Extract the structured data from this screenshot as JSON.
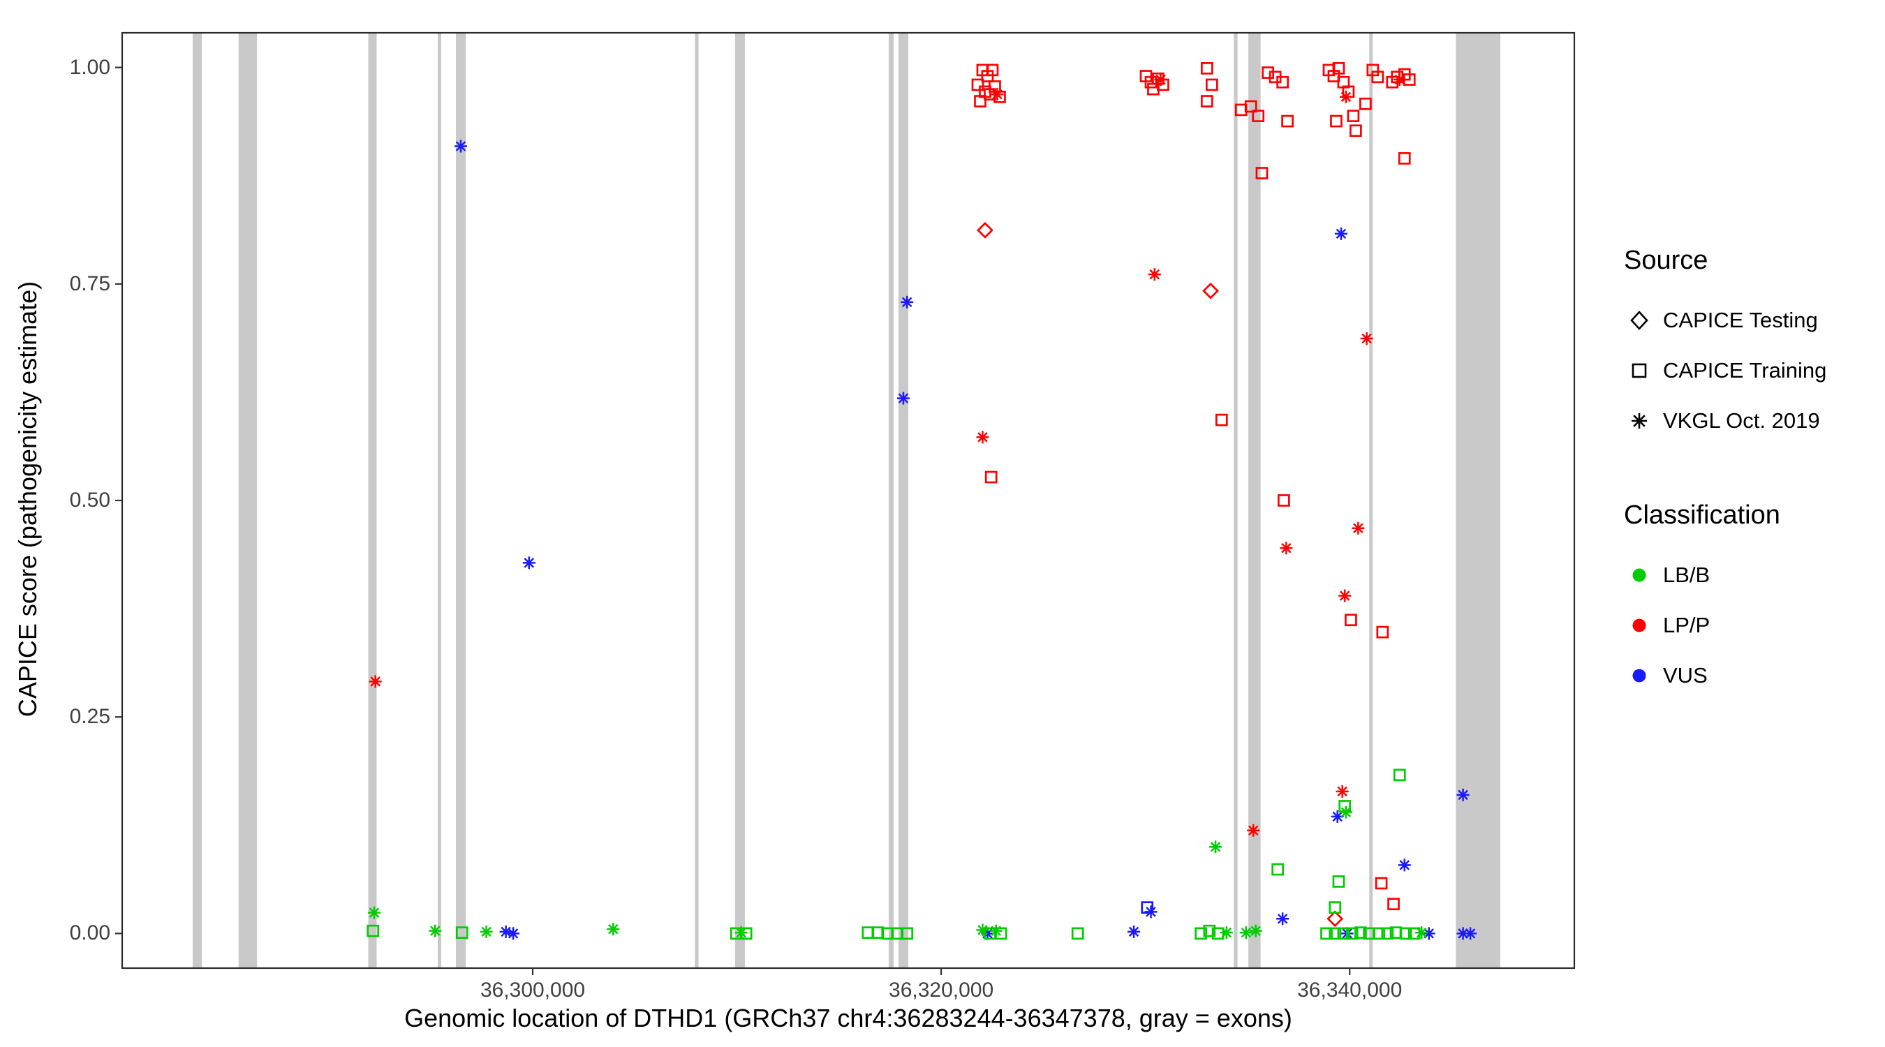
{
  "figure": {
    "background": "#ffffff"
  },
  "legend": {
    "source": {
      "title": "Source",
      "items": [
        {
          "label": "CAPICE Testing",
          "shape": "diamond"
        },
        {
          "label": "CAPICE Training",
          "shape": "square"
        },
        {
          "label": "VKGL Oct. 2019",
          "shape": "asterisk"
        }
      ]
    },
    "classification": {
      "title": "Classification",
      "items": [
        {
          "label": "LB/B",
          "color": "#00cc00"
        },
        {
          "label": "LP/P",
          "color": "#ff0000"
        },
        {
          "label": "VUS",
          "color": "#1a1aff"
        }
      ]
    }
  },
  "chart_data": {
    "type": "scatter",
    "title": "",
    "xlabel": "Genomic location of DTHD1 (GRCh37 chr4:36283244-36347378, gray = exons)",
    "ylabel": "CAPICE score (pathogenicity estimate)",
    "xlim": [
      36279900,
      36351000
    ],
    "ylim": [
      -0.04,
      1.04
    ],
    "grid": "none",
    "legend_position": "right",
    "x_ticks": [
      {
        "value": 36300000,
        "label": "36,300,000"
      },
      {
        "value": 36320000,
        "label": "36,320,000"
      },
      {
        "value": 36340000,
        "label": "36,340,000"
      }
    ],
    "y_ticks": [
      {
        "value": 1.0,
        "label": "1.00"
      },
      {
        "value": 0.75,
        "label": "0.75"
      },
      {
        "value": 0.5,
        "label": "0.50"
      },
      {
        "value": 0.25,
        "label": "0.25"
      },
      {
        "value": 0.0,
        "label": "0.00"
      }
    ],
    "exon_color": "#c9c9c9",
    "exons": [
      [
        36283350,
        36283800
      ],
      [
        36285600,
        36286500
      ],
      [
        36291950,
        36292360
      ],
      [
        36295350,
        36295520
      ],
      [
        36296240,
        36296720
      ],
      [
        36307940,
        36308120
      ],
      [
        36309910,
        36310390
      ],
      [
        36317430,
        36317670
      ],
      [
        36317910,
        36318390
      ],
      [
        36334330,
        36334510
      ],
      [
        36335040,
        36335640
      ],
      [
        36340960,
        36341130
      ],
      [
        36345200,
        36347378
      ]
    ],
    "classification_colors": {
      "LB/B": "#00cc00",
      "LP/P": "#ff0000",
      "VUS": "#1a1aff"
    },
    "source_shapes": {
      "CAPICE Testing": "diamond",
      "CAPICE Training": "square",
      "VKGL Oct. 2019": "asterisk"
    },
    "source_codes": {
      "T": "CAPICE Testing",
      "R": "CAPICE Training",
      "V": "VKGL Oct. 2019"
    },
    "classification_codes": {
      "B": "LB/B",
      "P": "LP/P",
      "U": "VUS"
    },
    "points_format": [
      "genomic_position",
      "capice_score",
      "source_code",
      "classification_code"
    ],
    "points": [
      [
        36321791,
        0.98,
        "R",
        "P"
      ],
      [
        36322029,
        0.997,
        "R",
        "P"
      ],
      [
        36322268,
        0.99,
        "R",
        "P"
      ],
      [
        36322507,
        0.997,
        "R",
        "P"
      ],
      [
        36322149,
        0.972,
        "R",
        "P"
      ],
      [
        36322388,
        0.969,
        "R",
        "P"
      ],
      [
        36322627,
        0.978,
        "R",
        "P"
      ],
      [
        36322866,
        0.966,
        "R",
        "P"
      ],
      [
        36321910,
        0.961,
        "R",
        "P"
      ],
      [
        36330029,
        0.99,
        "R",
        "P"
      ],
      [
        36330268,
        0.983,
        "R",
        "P"
      ],
      [
        36330626,
        0.987,
        "R",
        "P"
      ],
      [
        36330865,
        0.98,
        "R",
        "P"
      ],
      [
        36330387,
        0.975,
        "R",
        "P"
      ],
      [
        36333014,
        0.999,
        "R",
        "P"
      ],
      [
        36333253,
        0.98,
        "R",
        "P"
      ],
      [
        36333014,
        0.961,
        "R",
        "P"
      ],
      [
        36334686,
        0.951,
        "R",
        "P"
      ],
      [
        36335163,
        0.955,
        "R",
        "P"
      ],
      [
        36335522,
        0.944,
        "R",
        "P"
      ],
      [
        36335999,
        0.994,
        "R",
        "P"
      ],
      [
        36336357,
        0.989,
        "R",
        "P"
      ],
      [
        36336716,
        0.983,
        "R",
        "P"
      ],
      [
        36336955,
        0.938,
        "R",
        "P"
      ],
      [
        36335701,
        0.878,
        "R",
        "P"
      ],
      [
        36338984,
        0.997,
        "R",
        "P"
      ],
      [
        36339223,
        0.99,
        "R",
        "P"
      ],
      [
        36339462,
        0.999,
        "R",
        "P"
      ],
      [
        36339700,
        0.983,
        "R",
        "P"
      ],
      [
        36339939,
        0.972,
        "R",
        "P"
      ],
      [
        36339342,
        0.938,
        "R",
        "P"
      ],
      [
        36340178,
        0.944,
        "R",
        "P"
      ],
      [
        36340297,
        0.927,
        "R",
        "P"
      ],
      [
        36340775,
        0.958,
        "R",
        "P"
      ],
      [
        36341133,
        0.997,
        "R",
        "P"
      ],
      [
        36341372,
        0.989,
        "R",
        "P"
      ],
      [
        36342088,
        0.983,
        "R",
        "P"
      ],
      [
        36342327,
        0.989,
        "R",
        "P"
      ],
      [
        36342685,
        0.992,
        "R",
        "P"
      ],
      [
        36342924,
        0.986,
        "R",
        "P"
      ],
      [
        36342685,
        0.895,
        "R",
        "P"
      ],
      [
        36333731,
        0.593,
        "R",
        "P"
      ],
      [
        36322447,
        0.527,
        "R",
        "P"
      ],
      [
        36336775,
        0.5,
        "R",
        "P"
      ],
      [
        36340059,
        0.362,
        "R",
        "P"
      ],
      [
        36341611,
        0.348,
        "R",
        "P"
      ],
      [
        36341551,
        0.058,
        "R",
        "P"
      ],
      [
        36342148,
        0.034,
        "R",
        "P"
      ],
      [
        36322746,
        0.969,
        "V",
        "P"
      ],
      [
        36330746,
        0.986,
        "V",
        "P"
      ],
      [
        36339820,
        0.966,
        "V",
        "P"
      ],
      [
        36342446,
        0.986,
        "V",
        "P"
      ],
      [
        36330447,
        0.761,
        "V",
        "P"
      ],
      [
        36340835,
        0.687,
        "V",
        "P"
      ],
      [
        36322029,
        0.573,
        "V",
        "P"
      ],
      [
        36336895,
        0.445,
        "V",
        "P"
      ],
      [
        36340417,
        0.468,
        "V",
        "P"
      ],
      [
        36339760,
        0.39,
        "V",
        "P"
      ],
      [
        36292299,
        0.291,
        "V",
        "P"
      ],
      [
        36339641,
        0.164,
        "V",
        "P"
      ],
      [
        36335283,
        0.119,
        "V",
        "P"
      ],
      [
        36322149,
        0.812,
        "T",
        "P"
      ],
      [
        36333193,
        0.742,
        "T",
        "P"
      ],
      [
        36339283,
        0.017,
        "T",
        "P"
      ],
      [
        36296478,
        0.909,
        "V",
        "U"
      ],
      [
        36318328,
        0.729,
        "V",
        "U"
      ],
      [
        36318149,
        0.618,
        "V",
        "U"
      ],
      [
        36299821,
        0.428,
        "V",
        "U"
      ],
      [
        36339581,
        0.808,
        "V",
        "U"
      ],
      [
        36339402,
        0.135,
        "V",
        "U"
      ],
      [
        36345551,
        0.16,
        "V",
        "U"
      ],
      [
        36342685,
        0.079,
        "V",
        "U"
      ],
      [
        36330268,
        0.025,
        "V",
        "U"
      ],
      [
        36336716,
        0.017,
        "V",
        "U"
      ],
      [
        36330088,
        0.03,
        "R",
        "U"
      ],
      [
        36298687,
        0.002,
        "V",
        "U"
      ],
      [
        36299045,
        0.0,
        "V",
        "U"
      ],
      [
        36322268,
        0.0,
        "V",
        "U"
      ],
      [
        36329432,
        0.002,
        "V",
        "U"
      ],
      [
        36339880,
        0.0,
        "V",
        "U"
      ],
      [
        36343880,
        0.0,
        "V",
        "U"
      ],
      [
        36345551,
        0.0,
        "V",
        "U"
      ],
      [
        36345910,
        0.0,
        "V",
        "U"
      ],
      [
        36292239,
        0.024,
        "V",
        "B"
      ],
      [
        36295224,
        0.003,
        "V",
        "B"
      ],
      [
        36297731,
        0.002,
        "V",
        "B"
      ],
      [
        36303940,
        0.005,
        "V",
        "B"
      ],
      [
        36310209,
        0.001,
        "V",
        "B"
      ],
      [
        36322029,
        0.004,
        "V",
        "B"
      ],
      [
        36322686,
        0.003,
        "V",
        "B"
      ],
      [
        36333970,
        0.001,
        "V",
        "B"
      ],
      [
        36334925,
        0.001,
        "V",
        "B"
      ],
      [
        36335402,
        0.003,
        "V",
        "B"
      ],
      [
        36333432,
        0.1,
        "V",
        "B"
      ],
      [
        36339820,
        0.14,
        "V",
        "B"
      ],
      [
        36343521,
        0.001,
        "V",
        "B"
      ],
      [
        36292179,
        0.003,
        "R",
        "B"
      ],
      [
        36296537,
        0.001,
        "R",
        "B"
      ],
      [
        36309970,
        0.0,
        "R",
        "B"
      ],
      [
        36310448,
        0.0,
        "R",
        "B"
      ],
      [
        36316418,
        0.001,
        "R",
        "B"
      ],
      [
        36316895,
        0.001,
        "R",
        "B"
      ],
      [
        36317373,
        0.0,
        "R",
        "B"
      ],
      [
        36317850,
        0.0,
        "R",
        "B"
      ],
      [
        36318328,
        0.0,
        "R",
        "B"
      ],
      [
        36322388,
        0.0,
        "R",
        "B"
      ],
      [
        36322925,
        0.0,
        "R",
        "B"
      ],
      [
        36326686,
        0.0,
        "R",
        "B"
      ],
      [
        36332716,
        0.0,
        "R",
        "B"
      ],
      [
        36333133,
        0.003,
        "R",
        "B"
      ],
      [
        36333552,
        0.0,
        "R",
        "B"
      ],
      [
        36342446,
        0.183,
        "R",
        "B"
      ],
      [
        36336477,
        0.074,
        "R",
        "B"
      ],
      [
        36339462,
        0.06,
        "R",
        "B"
      ],
      [
        36339760,
        0.147,
        "R",
        "B"
      ],
      [
        36339283,
        0.03,
        "R",
        "B"
      ],
      [
        36338865,
        0.0,
        "R",
        "B"
      ],
      [
        36339283,
        0.0,
        "R",
        "B"
      ],
      [
        36339700,
        0.0,
        "R",
        "B"
      ],
      [
        36340118,
        0.0,
        "R",
        "B"
      ],
      [
        36340536,
        0.001,
        "R",
        "B"
      ],
      [
        36340954,
        0.0,
        "R",
        "B"
      ],
      [
        36341432,
        0.0,
        "R",
        "B"
      ],
      [
        36341850,
        0.0,
        "R",
        "B"
      ],
      [
        36342267,
        0.001,
        "R",
        "B"
      ],
      [
        36342745,
        0.0,
        "R",
        "B"
      ],
      [
        36343163,
        0.0,
        "R",
        "B"
      ]
    ]
  }
}
